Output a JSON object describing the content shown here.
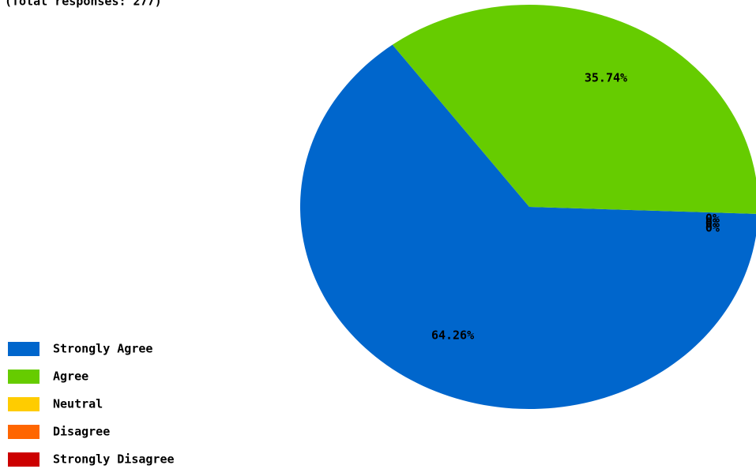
{
  "chart_data": {
    "type": "pie",
    "title": "(Total responses: 277)",
    "categories": [
      "Strongly Agree",
      "Agree",
      "Neutral",
      "Disagree",
      "Strongly Disagree"
    ],
    "values": [
      64.26,
      35.74,
      0,
      0,
      0
    ],
    "value_labels": [
      "64.26%",
      "35.74%",
      "0%",
      "0%",
      "0%"
    ],
    "colors": [
      "#0066cc",
      "#66cc00",
      "#ffcc00",
      "#ff6600",
      "#cc0000"
    ],
    "legend": "bottom-left"
  }
}
